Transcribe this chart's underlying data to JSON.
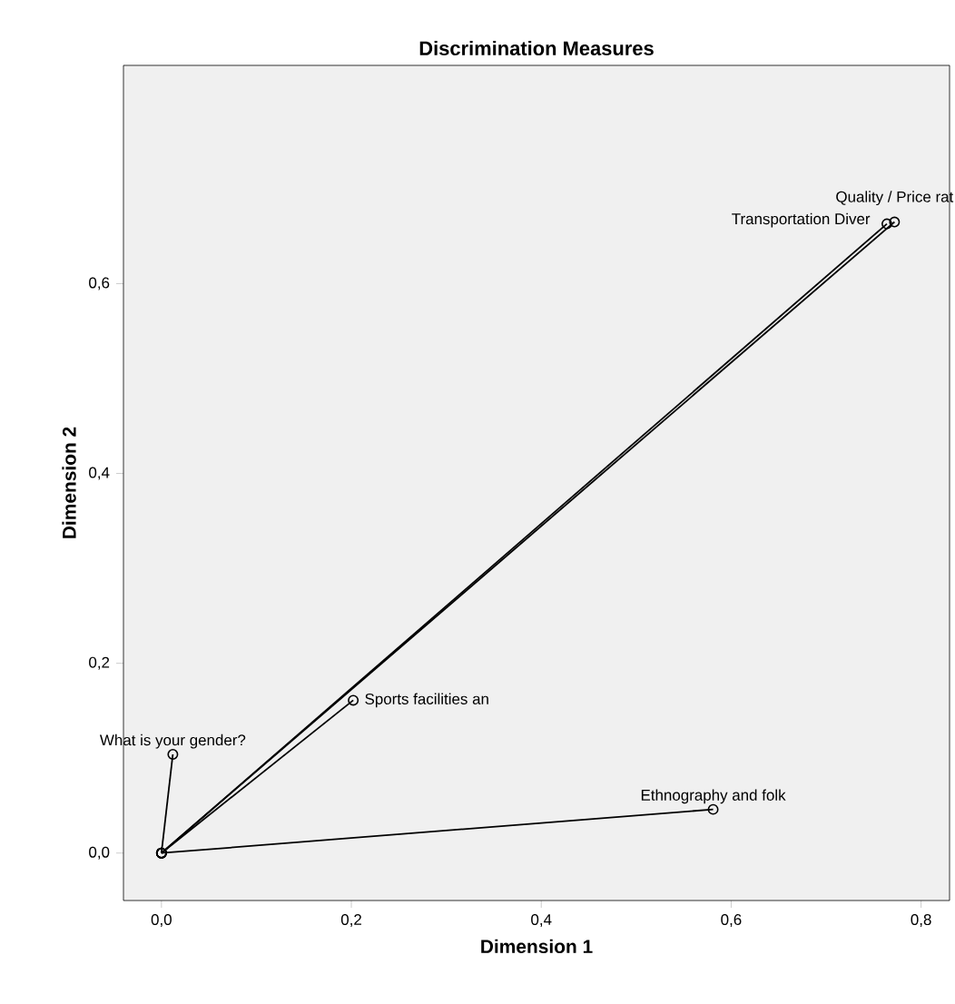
{
  "chart_data": {
    "type": "line",
    "title": "Discrimination Measures",
    "xlabel": "Dimension 1",
    "ylabel": "Dimension 2",
    "xlim": [
      -0.04,
      0.83
    ],
    "ylim": [
      -0.05,
      0.83
    ],
    "xticks": [
      {
        "value": 0,
        "label": "0,0"
      },
      {
        "value": 0.2,
        "label": "0,2"
      },
      {
        "value": 0.4,
        "label": "0,4"
      },
      {
        "value": 0.6,
        "label": "0,6"
      },
      {
        "value": 0.8,
        "label": "0,8"
      }
    ],
    "yticks": [
      {
        "value": 0,
        "label": "0,0"
      },
      {
        "value": 0.2,
        "label": "0,2"
      },
      {
        "value": 0.4,
        "label": "0,4"
      },
      {
        "value": 0.6,
        "label": "0,6"
      }
    ],
    "marker": "circle",
    "line_style": "solid",
    "grid": false,
    "series": [
      {
        "color": "#000000",
        "x": [
          0,
          0.012
        ],
        "values": [
          0,
          0.104
        ]
      },
      {
        "color": "#000000",
        "x": [
          0,
          0.202
        ],
        "values": [
          0,
          0.161
        ]
      },
      {
        "color": "#000000",
        "x": [
          0,
          0.581
        ],
        "values": [
          0,
          0.046
        ]
      },
      {
        "color": "#000000",
        "x": [
          0,
          0.772
        ],
        "values": [
          0,
          0.665
        ]
      },
      {
        "color": "#000000",
        "x": [
          0,
          0.764
        ],
        "values": [
          0,
          0.663
        ]
      }
    ],
    "annotations": [
      {
        "text": "What is your gender?",
        "x": 0.012,
        "y": 0.104
      },
      {
        "text": "Sports facilities an",
        "x": 0.202,
        "y": 0.161
      },
      {
        "text": "Ethnography and folk",
        "x": 0.581,
        "y": 0.046
      },
      {
        "text": "Quality / Price rat",
        "x": 0.772,
        "y": 0.665
      },
      {
        "text": "Transportation Diver",
        "x": 0.764,
        "y": 0.663
      }
    ]
  }
}
